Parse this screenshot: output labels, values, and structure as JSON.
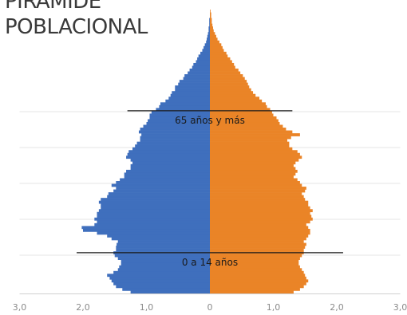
{
  "title": {
    "line1": "PIRAMIDE",
    "line2": "POBLACIONAL"
  },
  "chart_data": {
    "type": "bar",
    "orientation": "horizontal-population-pyramid",
    "title": "PIRAMIDE POBLACIONAL",
    "xlim": [
      -3.0,
      3.0
    ],
    "xticks": [
      -3,
      -2,
      -1,
      0,
      1,
      2,
      3
    ],
    "xtick_labels": [
      "3,0",
      "2,0",
      "1,0",
      "0",
      "1,0",
      "2,0",
      "3,0"
    ],
    "ages_bottom_to_top": "0 to 100 (single years)",
    "colors": {
      "left": "#3f6fbd",
      "right": "#ea8427"
    },
    "series": [
      {
        "side": "left",
        "values": [
          1.25,
          1.38,
          1.48,
          1.52,
          1.55,
          1.58,
          1.62,
          1.52,
          1.45,
          1.43,
          1.4,
          1.4,
          1.45,
          1.5,
          1.52,
          1.48,
          1.48,
          1.47,
          1.45,
          1.55,
          1.62,
          1.78,
          2.0,
          2.02,
          1.82,
          1.78,
          1.82,
          1.78,
          1.78,
          1.75,
          1.72,
          1.72,
          1.75,
          1.72,
          1.62,
          1.6,
          1.52,
          1.48,
          1.55,
          1.48,
          1.42,
          1.35,
          1.35,
          1.32,
          1.25,
          1.25,
          1.22,
          1.25,
          1.32,
          1.3,
          1.28,
          1.22,
          1.18,
          1.15,
          1.1,
          1.1,
          1.08,
          1.12,
          1.1,
          1.05,
          1.0,
          0.98,
          0.95,
          0.95,
          0.92,
          0.85,
          0.8,
          0.78,
          0.7,
          0.65,
          0.62,
          0.6,
          0.55,
          0.55,
          0.5,
          0.48,
          0.42,
          0.4,
          0.35,
          0.32,
          0.28,
          0.26,
          0.22,
          0.2,
          0.18,
          0.15,
          0.12,
          0.1,
          0.08,
          0.06,
          0.05,
          0.04,
          0.03,
          0.02,
          0.02,
          0.01,
          0.01,
          0.01,
          0.0,
          0.0,
          0.0
        ]
      },
      {
        "side": "right",
        "values": [
          1.32,
          1.42,
          1.48,
          1.52,
          1.55,
          1.52,
          1.5,
          1.48,
          1.45,
          1.42,
          1.4,
          1.4,
          1.42,
          1.45,
          1.48,
          1.48,
          1.5,
          1.52,
          1.48,
          1.52,
          1.55,
          1.58,
          1.58,
          1.55,
          1.52,
          1.58,
          1.62,
          1.6,
          1.58,
          1.62,
          1.58,
          1.55,
          1.55,
          1.5,
          1.48,
          1.45,
          1.5,
          1.52,
          1.45,
          1.42,
          1.38,
          1.32,
          1.35,
          1.38,
          1.35,
          1.32,
          1.35,
          1.4,
          1.45,
          1.42,
          1.38,
          1.3,
          1.25,
          1.25,
          1.22,
          1.28,
          1.42,
          1.3,
          1.2,
          1.15,
          1.1,
          1.08,
          1.05,
          1.0,
          0.98,
          0.95,
          0.9,
          0.88,
          0.82,
          0.78,
          0.72,
          0.68,
          0.65,
          0.62,
          0.6,
          0.58,
          0.55,
          0.52,
          0.48,
          0.45,
          0.4,
          0.38,
          0.35,
          0.32,
          0.28,
          0.26,
          0.22,
          0.2,
          0.18,
          0.15,
          0.12,
          0.1,
          0.08,
          0.06,
          0.05,
          0.04,
          0.03,
          0.03,
          0.02,
          0.02,
          0.01
        ]
      }
    ],
    "annotations": [
      {
        "label": "65 años y más",
        "age": 65,
        "x_range": [
          -1.3,
          1.3
        ]
      },
      {
        "label": "0 a 14 años",
        "age": 14.5,
        "x_range": [
          -2.1,
          2.1
        ]
      }
    ]
  }
}
